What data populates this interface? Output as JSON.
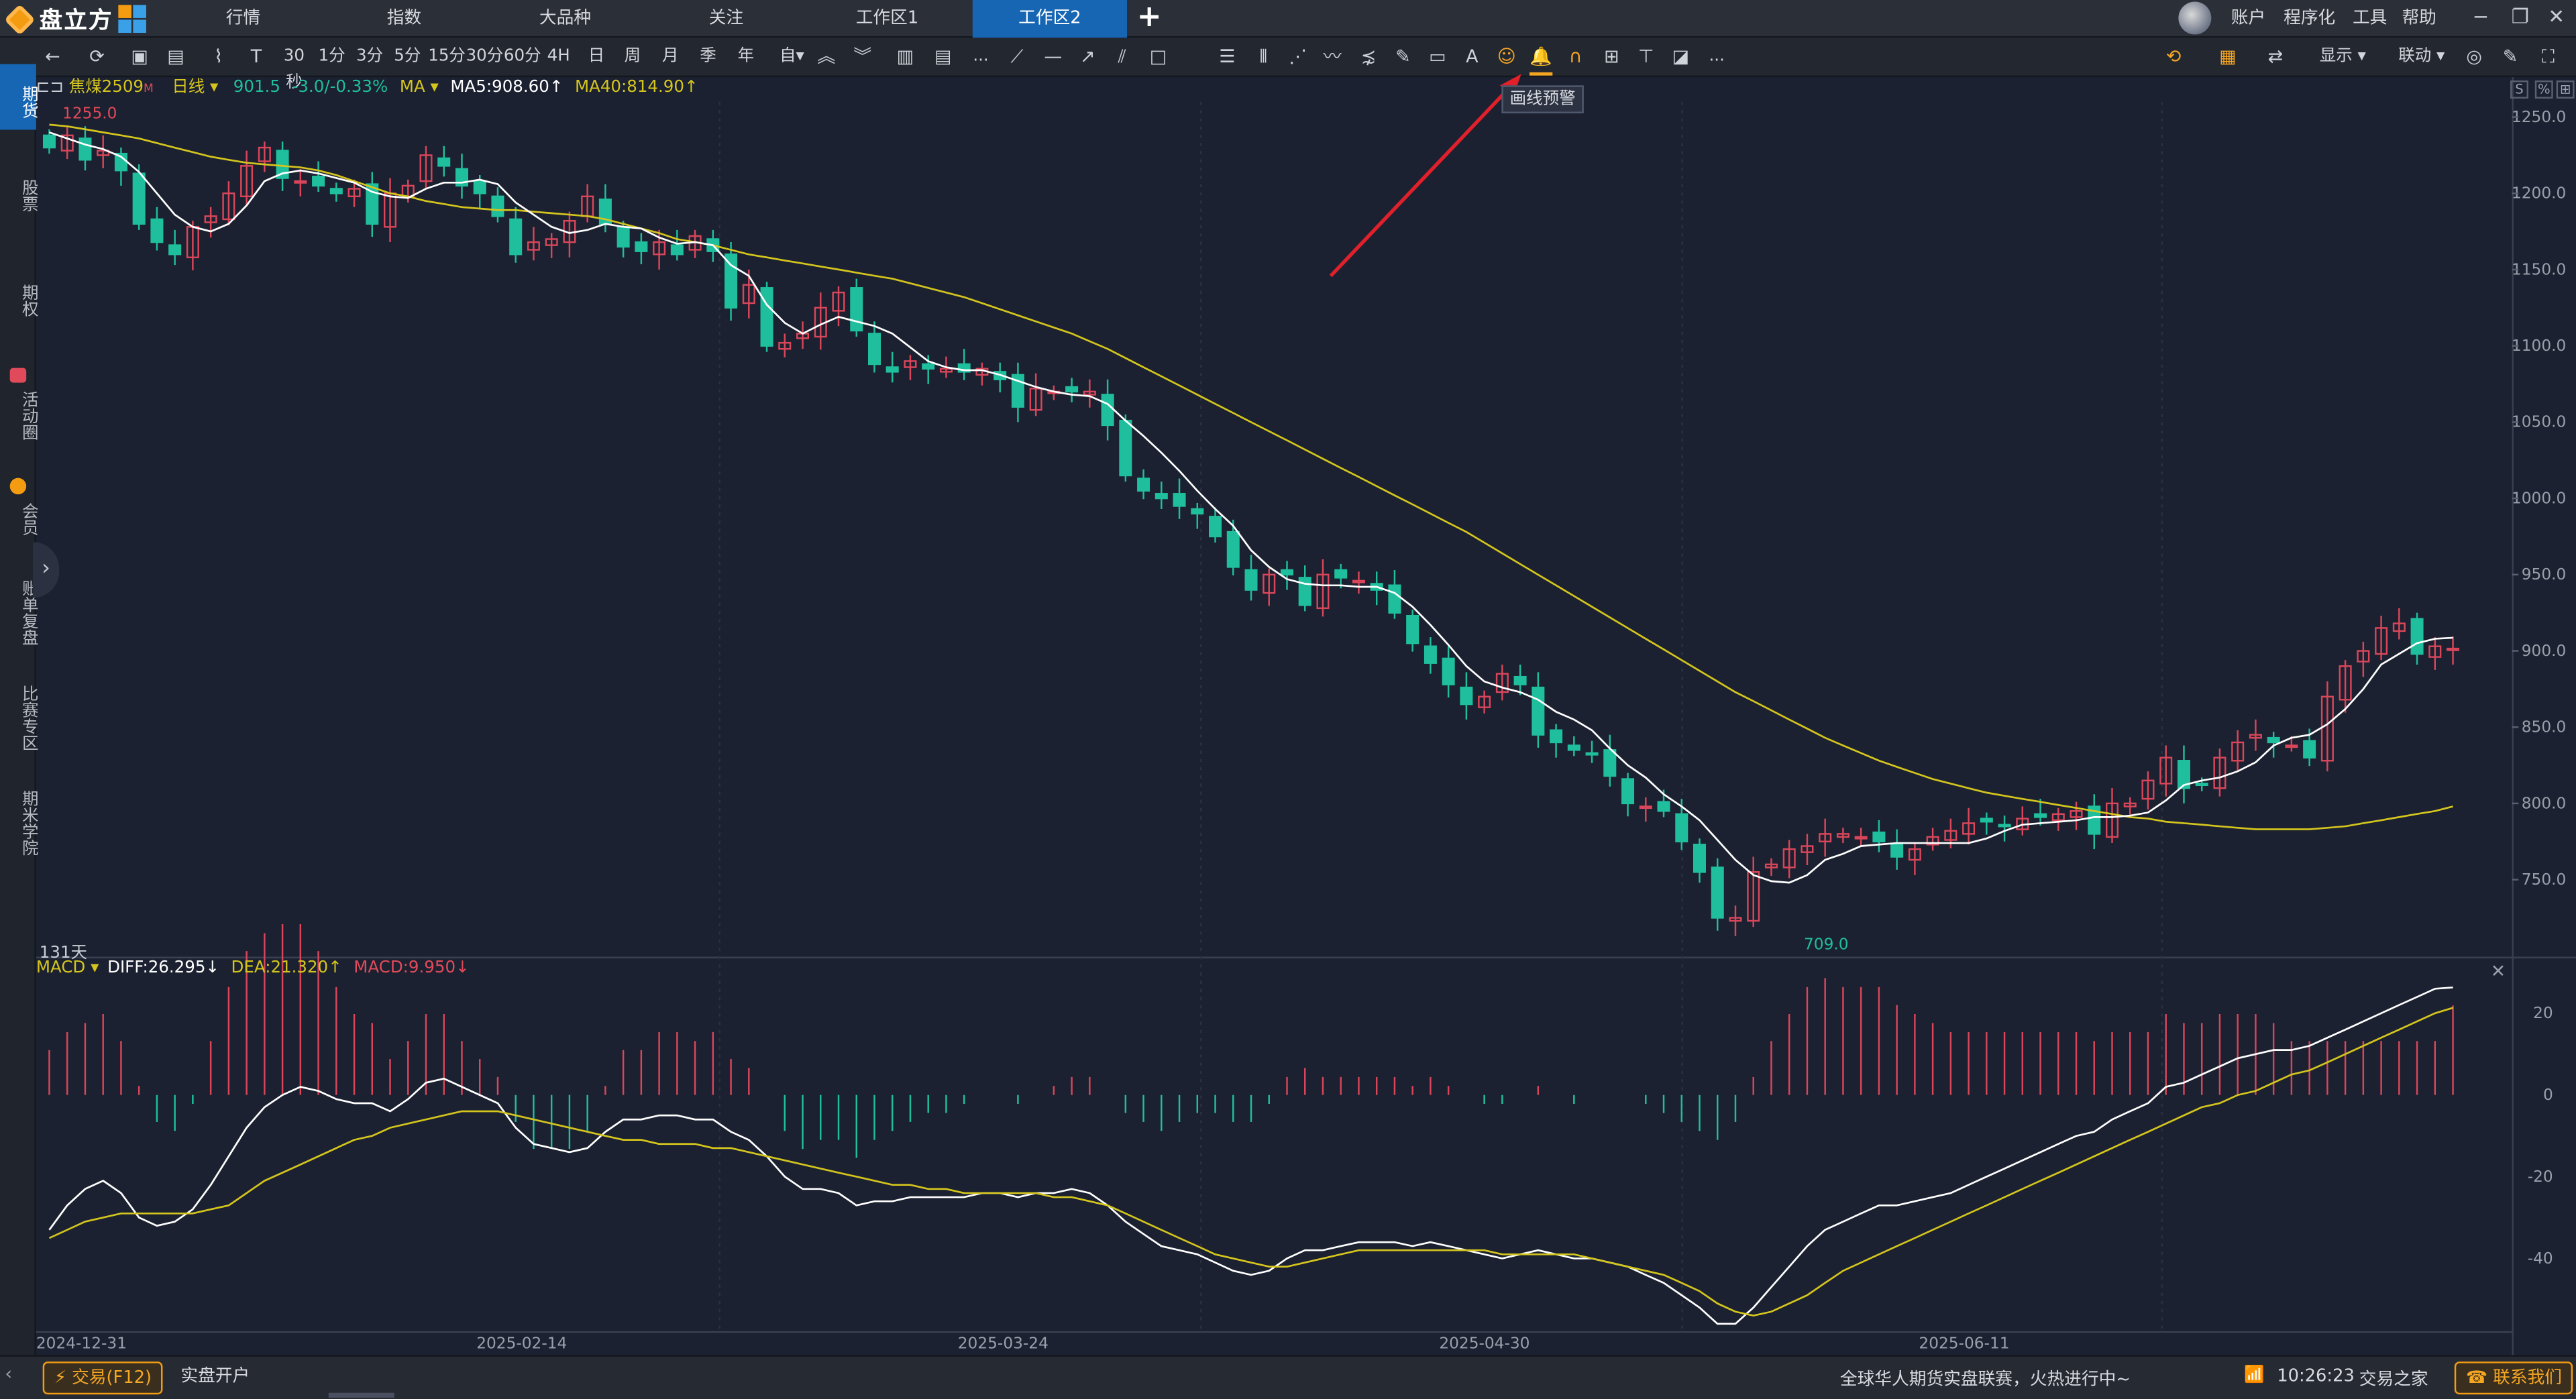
{
  "app": {
    "name": "盘立方"
  },
  "tabs": [
    {
      "label": "行情",
      "active": false
    },
    {
      "label": "指数",
      "active": false
    },
    {
      "label": "大品种",
      "active": false
    },
    {
      "label": "关注",
      "active": false
    },
    {
      "label": "工作区1",
      "active": false
    },
    {
      "label": "工作区2",
      "active": true
    }
  ],
  "top_menu": {
    "account": "账户",
    "program": "程序化",
    "tools": "工具",
    "help": "帮助"
  },
  "toolbar": {
    "periods": [
      "30秒",
      "1分",
      "3分",
      "5分",
      "15分",
      "30分",
      "60分",
      "4H",
      "日",
      "周",
      "月",
      "季",
      "年",
      "自▾"
    ],
    "more": "...",
    "more2": "...",
    "show_label": "显示 ▾",
    "link_label": "联动 ▾"
  },
  "sidebar": [
    {
      "label": "期货",
      "active": true
    },
    {
      "label": "股票",
      "active": false
    },
    {
      "label": "期权",
      "active": false
    },
    {
      "label": "活动圈",
      "active": false
    },
    {
      "label": "会员",
      "active": false
    },
    {
      "label": "账单复盘",
      "active": false
    },
    {
      "label": "比赛专区",
      "active": false
    },
    {
      "label": "期米学院",
      "active": false
    }
  ],
  "instrument": {
    "name": "焦煤2509",
    "period": "日线 ▾",
    "last": "901.5",
    "change": "-3.0/-0.33%",
    "ma_label": "MA ▾",
    "ma5": "MA5:908.60↑",
    "ma40": "MA40:814.90↑",
    "high_mark": "1255.0",
    "low_mark": "709.0",
    "days": "131天"
  },
  "macd": {
    "label": "MACD ▾",
    "diff": "DIFF:26.295↓",
    "dea": "DEA:21.320↑",
    "macd": "MACD:9.950↓"
  },
  "tooltip": {
    "text": "画线预警"
  },
  "colors": {
    "up": "#d9465a",
    "down": "#1fbf9e",
    "ma5": "#ffffff",
    "ma40": "#d4c51e",
    "arrow": "#e0202a",
    "active_tab": "#1766b3"
  },
  "statusbar": {
    "trade_button": "交易(F12)",
    "open_account": "实盘开户",
    "ticker": "全球华人期货实盘联赛，火热进行中~",
    "time": "10:26:23",
    "site": "交易之家",
    "contact": "联系我们"
  },
  "chart_data": {
    "type": "candlestick",
    "instrument": "焦煤2509",
    "period": "daily",
    "x_labels": [
      "2024-12-31",
      "2025-02-14",
      "2025-03-24",
      "2025-04-30",
      "2025-06-11"
    ],
    "price_ylim": [
      700,
      1260
    ],
    "price_ticks": [
      1250,
      1200,
      1150,
      1100,
      1050,
      1000,
      950,
      900,
      850,
      800,
      750
    ],
    "price_tick_labels": [
      "1250.0",
      "1200.0",
      "1150.0",
      "1100.0",
      "1050.0",
      "1000.0",
      "950.0",
      "900.0",
      "850.0",
      "800.0",
      "750.0"
    ],
    "close": [
      1230,
      1238,
      1222,
      1228,
      1215,
      1180,
      1168,
      1160,
      1178,
      1185,
      1200,
      1218,
      1230,
      1210,
      1208,
      1205,
      1200,
      1203,
      1180,
      1200,
      1205,
      1225,
      1218,
      1205,
      1200,
      1185,
      1160,
      1168,
      1170,
      1182,
      1198,
      1180,
      1165,
      1162,
      1168,
      1160,
      1172,
      1162,
      1125,
      1140,
      1100,
      1102,
      1108,
      1125,
      1135,
      1110,
      1088,
      1083,
      1090,
      1085,
      1085,
      1083,
      1085,
      1078,
      1060,
      1072,
      1070,
      1070,
      1070,
      1048,
      1015,
      1005,
      1000,
      995,
      990,
      975,
      955,
      940,
      950,
      950,
      930,
      950,
      948,
      946,
      940,
      925,
      905,
      892,
      878,
      865,
      870,
      885,
      878,
      845,
      840,
      835,
      832,
      818,
      800,
      798,
      795,
      775,
      755,
      725,
      725,
      755,
      760,
      770,
      772,
      780,
      780,
      778,
      775,
      765,
      770,
      778,
      782,
      787,
      788,
      785,
      790,
      791,
      793,
      795,
      780,
      800,
      800,
      815,
      830,
      810,
      812,
      830,
      840,
      845,
      840,
      838,
      830,
      870,
      890,
      900,
      915,
      918,
      898,
      903,
      901.5
    ],
    "ma5": [
      1240,
      1236,
      1232,
      1229,
      1224,
      1214,
      1200,
      1186,
      1178,
      1175,
      1180,
      1192,
      1208,
      1213,
      1215,
      1213,
      1210,
      1207,
      1201,
      1198,
      1197,
      1203,
      1207,
      1207,
      1209,
      1206,
      1194,
      1186,
      1178,
      1174,
      1176,
      1180,
      1178,
      1177,
      1171,
      1167,
      1168,
      1166,
      1153,
      1146,
      1127,
      1115,
      1108,
      1114,
      1119,
      1116,
      1113,
      1108,
      1099,
      1090,
      1086,
      1084,
      1084,
      1081,
      1077,
      1073,
      1070,
      1068,
      1067,
      1062,
      1051,
      1041,
      1030,
      1018,
      1005,
      993,
      982,
      966,
      955,
      947,
      944,
      943,
      943,
      942,
      942,
      938,
      929,
      917,
      904,
      890,
      880,
      876,
      873,
      868,
      860,
      855,
      848,
      836,
      825,
      817,
      806,
      798,
      789,
      776,
      763,
      753,
      749,
      748,
      753,
      763,
      767,
      772,
      773,
      774,
      774,
      774,
      774,
      774,
      777,
      782,
      786,
      787,
      788,
      789,
      791,
      791,
      792,
      794,
      802,
      812,
      815,
      817,
      821,
      827,
      838,
      843,
      845,
      852,
      862,
      875,
      891,
      898,
      905,
      908,
      908.6
    ],
    "ma40": [
      1245,
      1244,
      1242,
      1240,
      1238,
      1236,
      1233,
      1230,
      1227,
      1224,
      1222,
      1220,
      1219,
      1218,
      1217,
      1215,
      1212,
      1208,
      1204,
      1200,
      1198,
      1195,
      1193,
      1191,
      1190,
      1189,
      1189,
      1188,
      1187,
      1186,
      1185,
      1183,
      1180,
      1177,
      1174,
      1170,
      1168,
      1166,
      1163,
      1160,
      1158,
      1156,
      1154,
      1152,
      1150,
      1148,
      1146,
      1144,
      1141,
      1138,
      1135,
      1132,
      1128,
      1124,
      1120,
      1116,
      1112,
      1108,
      1103,
      1098,
      1092,
      1086,
      1080,
      1074,
      1068,
      1062,
      1056,
      1050,
      1044,
      1038,
      1032,
      1026,
      1020,
      1014,
      1008,
      1002,
      996,
      990,
      984,
      978,
      971,
      964,
      957,
      950,
      943,
      936,
      929,
      922,
      915,
      908,
      901,
      894,
      887,
      880,
      873,
      867,
      861,
      855,
      849,
      843,
      838,
      833,
      828,
      824,
      820,
      816,
      813,
      810,
      807,
      805,
      803,
      801,
      799,
      797,
      795,
      793,
      791,
      790,
      788,
      787,
      786,
      785,
      784,
      783,
      783,
      783,
      783,
      784,
      785,
      787,
      789,
      791,
      793,
      795,
      798
    ],
    "macd_ylim": [
      -58,
      28
    ],
    "macd_ticks": [
      20,
      0,
      -20,
      -40
    ],
    "macd_tick_labels": [
      "20",
      "0",
      "-20",
      "-40"
    ],
    "diff": [
      -33,
      -27,
      -23,
      -21,
      -24,
      -30,
      -32,
      -31,
      -28,
      -22,
      -15,
      -8,
      -3,
      0,
      2,
      1,
      -1,
      -2,
      -2,
      -4,
      -1,
      3,
      4,
      2,
      0,
      -2,
      -8,
      -12,
      -13,
      -14,
      -13,
      -9,
      -6,
      -6,
      -5,
      -5,
      -6,
      -6,
      -9,
      -11,
      -15,
      -20,
      -23,
      -23,
      -24,
      -27,
      -26,
      -26,
      -25,
      -25,
      -25,
      -25,
      -24,
      -24,
      -25,
      -24,
      -24,
      -23,
      -24,
      -27,
      -31,
      -34,
      -37,
      -38,
      -39,
      -41,
      -43,
      -44,
      -43,
      -40,
      -38,
      -38,
      -37,
      -36,
      -36,
      -36,
      -37,
      -36,
      -37,
      -38,
      -39,
      -40,
      -39,
      -38,
      -39,
      -40,
      -40,
      -41,
      -42,
      -44,
      -46,
      -49,
      -52,
      -56,
      -56,
      -52,
      -47,
      -42,
      -37,
      -33,
      -31,
      -29,
      -27,
      -27,
      -26,
      -25,
      -24,
      -22,
      -20,
      -18,
      -16,
      -14,
      -12,
      -10,
      -9,
      -6,
      -4,
      -2,
      2,
      3,
      5,
      7,
      9,
      10,
      11,
      11,
      12,
      14,
      16,
      18,
      20,
      22,
      24,
      26,
      26.295
    ],
    "dea": [
      -35,
      -33,
      -31,
      -30,
      -29,
      -29,
      -29,
      -29,
      -29,
      -28,
      -27,
      -24,
      -21,
      -19,
      -17,
      -15,
      -13,
      -11,
      -10,
      -8,
      -7,
      -6,
      -5,
      -4,
      -4,
      -4,
      -5,
      -6,
      -7,
      -8,
      -9,
      -10,
      -11,
      -11,
      -12,
      -12,
      -12,
      -13,
      -13,
      -14,
      -15,
      -16,
      -17,
      -18,
      -19,
      -20,
      -21,
      -22,
      -22,
      -23,
      -23,
      -24,
      -24,
      -24,
      -24,
      -24,
      -25,
      -25,
      -26,
      -27,
      -29,
      -31,
      -33,
      -35,
      -37,
      -39,
      -40,
      -41,
      -42,
      -42,
      -41,
      -40,
      -39,
      -38,
      -38,
      -38,
      -38,
      -38,
      -38,
      -38,
      -38,
      -39,
      -39,
      -39,
      -39,
      -39,
      -40,
      -41,
      -42,
      -43,
      -44,
      -46,
      -48,
      -51,
      -53,
      -54,
      -53,
      -51,
      -49,
      -46,
      -43,
      -41,
      -39,
      -37,
      -35,
      -33,
      -31,
      -29,
      -27,
      -25,
      -23,
      -21,
      -19,
      -17,
      -15,
      -13,
      -11,
      -9,
      -7,
      -5,
      -3,
      -2,
      0,
      1,
      3,
      5,
      6,
      8,
      10,
      12,
      14,
      16,
      18,
      20,
      21.32
    ],
    "macd_hist": [
      5,
      7,
      8,
      9,
      6,
      1,
      -3,
      -4,
      -1,
      6,
      12,
      16,
      18,
      19,
      19,
      16,
      12,
      9,
      8,
      4,
      6,
      9,
      9,
      6,
      4,
      2,
      -3,
      -6,
      -6,
      -6,
      -4,
      1,
      5,
      5,
      7,
      7,
      6,
      7,
      4,
      3,
      0,
      -4,
      -6,
      -5,
      -5,
      -7,
      -5,
      -4,
      -3,
      -2,
      -2,
      -1,
      0,
      0,
      -1,
      0,
      1,
      2,
      2,
      0,
      -2,
      -3,
      -4,
      -3,
      -2,
      -2,
      -3,
      -3,
      -1,
      2,
      3,
      2,
      2,
      2,
      2,
      2,
      1,
      2,
      1,
      0,
      -1,
      -1,
      0,
      1,
      0,
      -1,
      0,
      0,
      0,
      -1,
      -2,
      -3,
      -4,
      -5,
      -3,
      2,
      6,
      9,
      12,
      13,
      12,
      12,
      12,
      10,
      9,
      8,
      7,
      7,
      7,
      7,
      7,
      7,
      7,
      7,
      6,
      7,
      7,
      7,
      9,
      8,
      8,
      9,
      9,
      9,
      8,
      6,
      6,
      6,
      6,
      6,
      6,
      6,
      6,
      6,
      9.95
    ]
  }
}
